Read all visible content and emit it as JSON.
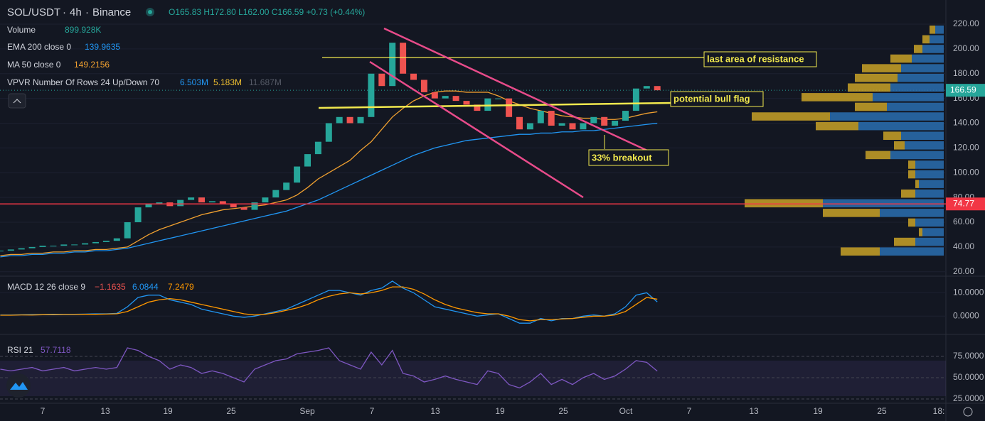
{
  "header": {
    "symbol": "SOL/USDT",
    "interval": "4h",
    "exchange": "Binance",
    "ohlc": "O165.83 H172.80 L162.00 C166.59 +0.73 (+0.44%)"
  },
  "indicators": {
    "volume": {
      "name": "Volume",
      "value": "899.928K"
    },
    "ema": {
      "name": "EMA 200 close 0",
      "value": "139.9635"
    },
    "ma": {
      "name": "MA 50 close 0",
      "value": "149.2156"
    },
    "vpvr": {
      "name": "VPVR Number Of Rows 24 Up/Down 70",
      "up": "6.503M",
      "down": "5.183M",
      "total": "11.687M"
    },
    "macd": {
      "name": "MACD 12 26 close 9",
      "hist": "−1.1635",
      "macd": "6.0844",
      "signal": "7.2479"
    },
    "rsi": {
      "name": "RSI 21",
      "value": "57.7118"
    }
  },
  "annotations": {
    "resistance": "last area of resistance",
    "flag": "potential bull flag",
    "breakout": "33% breakout"
  },
  "price_tags": {
    "last": {
      "value": 166.59,
      "label": "166.59"
    },
    "line": {
      "value": 74.77,
      "label": "74.77"
    }
  },
  "chart": {
    "type": "candlestick",
    "ylim": [
      17,
      239.5
    ],
    "yticks": [
      {
        "value": 220,
        "label": "220.00"
      },
      {
        "value": 200,
        "label": "200.00"
      },
      {
        "value": 180,
        "label": "180.00"
      },
      {
        "value": 160,
        "label": "160.00"
      },
      {
        "value": 140,
        "label": "140.00"
      },
      {
        "value": 120,
        "label": "120.00"
      },
      {
        "value": 100,
        "label": "100.00"
      },
      {
        "value": 80,
        "label": "80.00"
      },
      {
        "value": 60,
        "label": "60.00"
      },
      {
        "value": 40,
        "label": "40.00"
      },
      {
        "value": 20,
        "label": "20.00"
      }
    ],
    "x_labels": [
      "7",
      "13",
      "19",
      "25",
      "Sep",
      "7",
      "13",
      "19",
      "25",
      "Oct",
      "7",
      "13",
      "19",
      "25",
      "18:"
    ],
    "up_color": "#26a69a",
    "down_color": "#ef5350",
    "close": [
      37,
      38,
      39,
      40,
      41,
      41,
      42,
      42,
      43,
      44,
      45,
      47,
      60,
      72,
      75,
      76,
      73,
      78,
      80,
      76,
      77,
      75,
      72,
      70,
      76,
      80,
      86,
      92,
      105,
      115,
      125,
      140,
      145,
      140,
      145,
      180,
      170,
      205,
      180,
      175,
      165,
      160,
      162,
      158,
      155,
      150,
      160,
      160,
      145,
      135,
      140,
      150,
      138,
      140,
      135,
      140,
      145,
      138,
      142,
      150,
      168,
      170,
      166.59
    ],
    "ma50": {
      "color": "#f0a030",
      "values": [
        33,
        34,
        34,
        35,
        35,
        36,
        36,
        37,
        37,
        38,
        38,
        39,
        40,
        45,
        50,
        54,
        57,
        60,
        63,
        66,
        68,
        70,
        71,
        72,
        73,
        74,
        76,
        78,
        82,
        88,
        95,
        100,
        105,
        110,
        118,
        125,
        135,
        145,
        152,
        158,
        162,
        165,
        166,
        166,
        165,
        165,
        165,
        162,
        158,
        155,
        152,
        150,
        148,
        146,
        145,
        144,
        144,
        143,
        143,
        144,
        146,
        148,
        149.2
      ]
    },
    "ema200": {
      "color": "#2196f3",
      "values": [
        32,
        33,
        33,
        34,
        34,
        35,
        35,
        36,
        36,
        37,
        37,
        38,
        39,
        41,
        43,
        45,
        47,
        49,
        51,
        53,
        55,
        57,
        59,
        61,
        63,
        65,
        67,
        69,
        72,
        75,
        78,
        82,
        86,
        90,
        94,
        98,
        102,
        106,
        110,
        114,
        117,
        120,
        122,
        124,
        126,
        127,
        128,
        129,
        130,
        131,
        131,
        132,
        132,
        133,
        133,
        134,
        134,
        135,
        136,
        137,
        138,
        139,
        139.96
      ]
    },
    "vpvr_rows": {
      "up_color": "#2a6fb0",
      "down_color": "#c9a227",
      "up": [
        12,
        20,
        30,
        45,
        60,
        65,
        75,
        100,
        80,
        160,
        120,
        60,
        55,
        75,
        40,
        40,
        35,
        40,
        170,
        90,
        40,
        30,
        40,
        90
      ],
      "down": [
        8,
        10,
        12,
        30,
        55,
        60,
        60,
        100,
        45,
        110,
        60,
        25,
        15,
        35,
        10,
        10,
        5,
        20,
        110,
        80,
        10,
        5,
        30,
        55
      ]
    }
  },
  "macd_pane": {
    "ylim": [
      -7.5,
      16.8
    ],
    "yticks": [
      {
        "value": 10,
        "label": "10.0000"
      },
      {
        "value": 0,
        "label": "0.0000"
      }
    ],
    "macd": {
      "color": "#2196f3",
      "values": [
        0.5,
        0.5,
        0.6,
        0.7,
        0.7,
        0.8,
        0.8,
        0.8,
        0.9,
        1,
        1,
        1.2,
        4,
        8,
        9,
        9,
        7,
        6,
        5,
        3,
        2,
        1,
        0,
        -0.5,
        0,
        1,
        2,
        3,
        5,
        7,
        9,
        11,
        11,
        10,
        9,
        11,
        12,
        15,
        12,
        10,
        7,
        4,
        3,
        2,
        1,
        0,
        0.5,
        1,
        -1,
        -3,
        -3,
        -1,
        -2,
        -1,
        -1,
        0,
        0.5,
        0,
        1,
        4,
        9,
        10,
        6.08
      ]
    },
    "signal": {
      "color": "#ff9800",
      "values": [
        0.4,
        0.4,
        0.5,
        0.5,
        0.6,
        0.6,
        0.7,
        0.7,
        0.8,
        0.8,
        0.9,
        1,
        2,
        4,
        6,
        7,
        7.5,
        7,
        6,
        5,
        4,
        3,
        2,
        1,
        0.5,
        0.8,
        1.5,
        2.5,
        3.5,
        5,
        7,
        8.5,
        9.5,
        10,
        9.5,
        10,
        11,
        12.5,
        12.5,
        11.5,
        9.5,
        7,
        5,
        3.5,
        2.5,
        1.5,
        1,
        1,
        0,
        -1.5,
        -2,
        -1.5,
        -1.5,
        -1.2,
        -1,
        -0.5,
        0,
        0,
        0.5,
        2,
        5,
        8,
        7.25
      ]
    }
  },
  "rsi_pane": {
    "ylim": [
      20,
      100
    ],
    "yticks": [
      {
        "value": 75,
        "label": "75.0000"
      },
      {
        "value": 50,
        "label": "50.0000"
      },
      {
        "value": 25,
        "label": "25.0000"
      }
    ],
    "rsi": {
      "color": "#7e57c2",
      "values": [
        60,
        58,
        60,
        62,
        58,
        60,
        62,
        58,
        60,
        62,
        60,
        62,
        85,
        82,
        75,
        70,
        60,
        65,
        62,
        55,
        58,
        55,
        50,
        45,
        60,
        65,
        70,
        72,
        78,
        80,
        82,
        85,
        70,
        65,
        60,
        80,
        65,
        82,
        55,
        52,
        45,
        48,
        52,
        48,
        45,
        42,
        58,
        55,
        42,
        38,
        45,
        55,
        42,
        48,
        42,
        50,
        55,
        48,
        52,
        60,
        70,
        68,
        57.71
      ]
    }
  }
}
